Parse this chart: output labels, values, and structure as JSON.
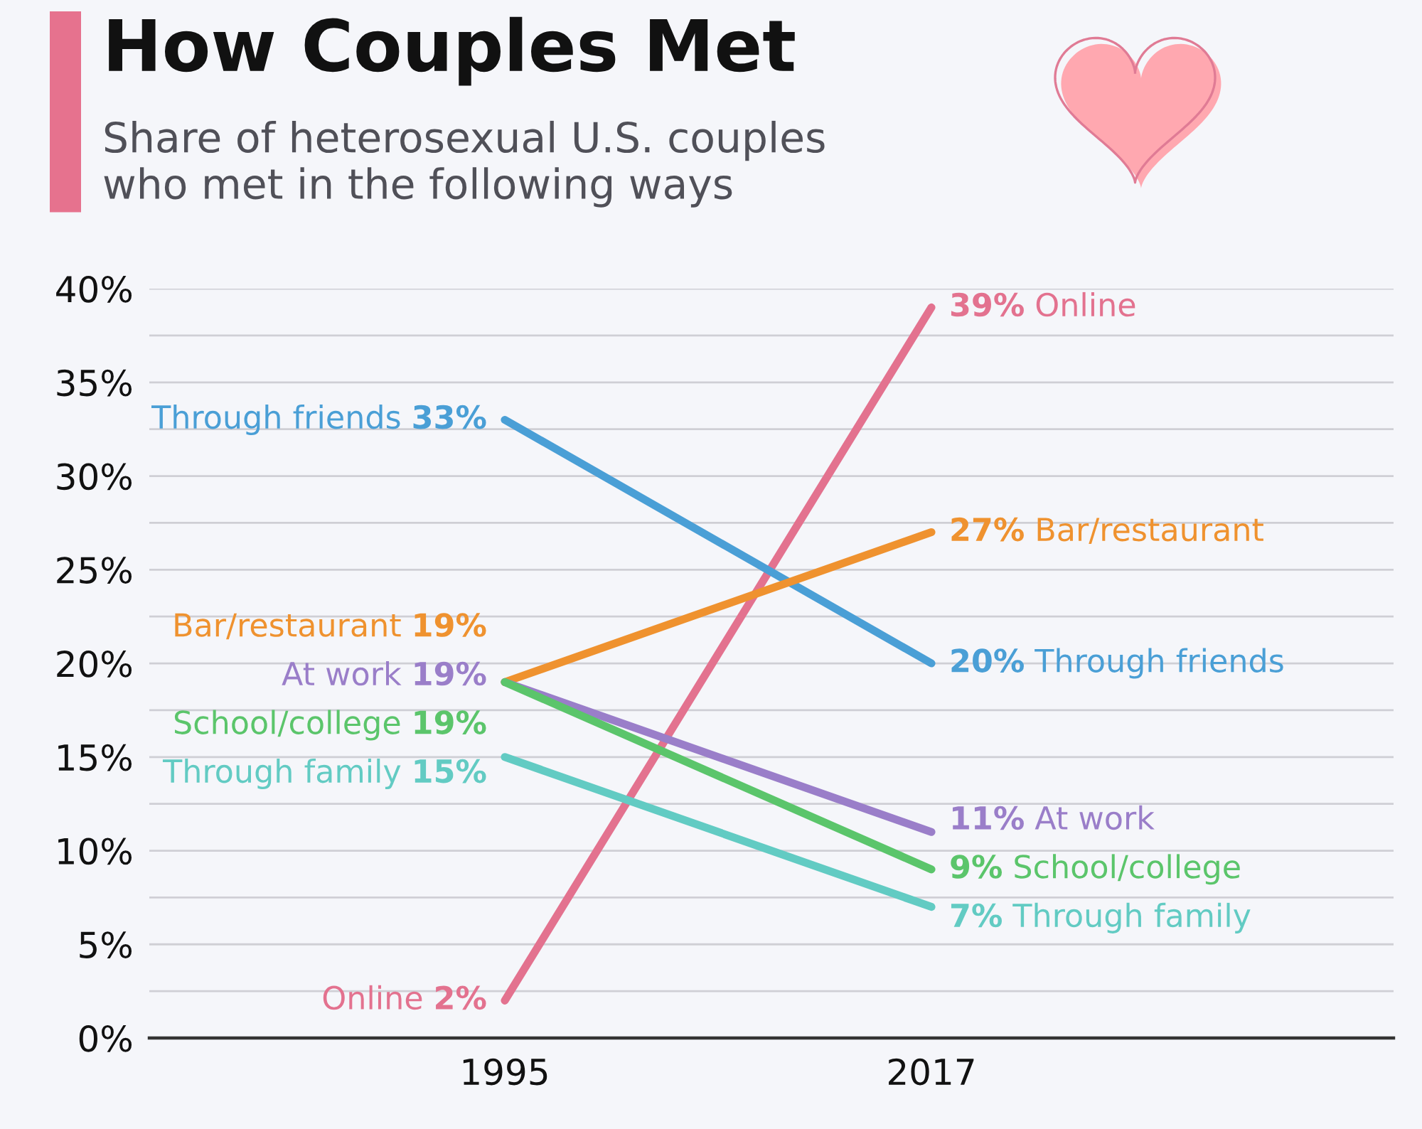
{
  "chart_data": {
    "type": "line",
    "title": "How Couples Met",
    "subtitle": "Share of heterosexual U.S. couples\nwho met in the following ways",
    "categories": [
      "1995",
      "2017"
    ],
    "series": [
      {
        "name": "Online",
        "color": "#e3728f",
        "values": [
          2,
          39
        ],
        "value_labels": [
          "2%",
          "39%"
        ]
      },
      {
        "name": "Through friends",
        "color": "#4a9fd6",
        "values": [
          33,
          20
        ],
        "value_labels": [
          "33%",
          "20%"
        ]
      },
      {
        "name": "Bar/restaurant",
        "color": "#ef922f",
        "values": [
          19,
          27
        ],
        "value_labels": [
          "19%",
          "27%"
        ]
      },
      {
        "name": "At work",
        "color": "#9a7ec9",
        "values": [
          19,
          11
        ],
        "value_labels": [
          "19%",
          "11%"
        ]
      },
      {
        "name": "School/college",
        "color": "#5bc56b",
        "values": [
          19,
          9
        ],
        "value_labels": [
          "19%",
          "9%"
        ]
      },
      {
        "name": "Through family",
        "color": "#62cbc3",
        "values": [
          15,
          7
        ],
        "value_labels": [
          "15%",
          "7%"
        ]
      }
    ],
    "ylim": [
      0,
      40
    ],
    "yticks": [
      {
        "value": 0,
        "label": "0%"
      },
      {
        "value": 2.5,
        "label": null
      },
      {
        "value": 5,
        "label": "5%"
      },
      {
        "value": 7.5,
        "label": null
      },
      {
        "value": 10,
        "label": "10%"
      },
      {
        "value": 12.5,
        "label": null
      },
      {
        "value": 15,
        "label": "15%"
      },
      {
        "value": 17.5,
        "label": null
      },
      {
        "value": 20,
        "label": "20%"
      },
      {
        "value": 22.5,
        "label": null
      },
      {
        "value": 25,
        "label": "25%"
      },
      {
        "value": 27.5,
        "label": null
      },
      {
        "value": 30,
        "label": "30%"
      },
      {
        "value": 32.5,
        "label": null
      },
      {
        "value": 35,
        "label": "35%"
      },
      {
        "value": 37.5,
        "label": null
      },
      {
        "value": 40,
        "label": "40%"
      }
    ],
    "grid": "y",
    "line_style": "solid"
  }
}
